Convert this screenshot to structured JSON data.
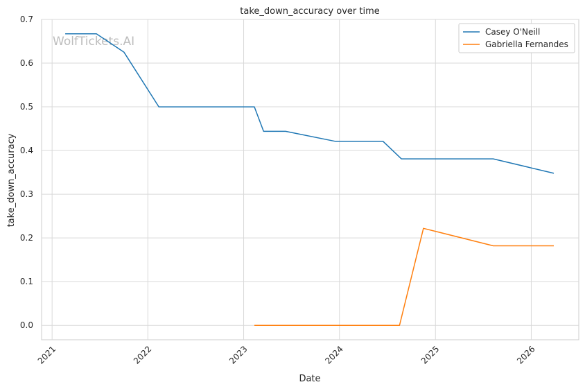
{
  "chart_data": {
    "type": "line",
    "title": "take_down_accuracy over time",
    "xlabel": "Date",
    "ylabel": "take_down_accuracy",
    "watermark": "WolfTickets.AI",
    "x_ticks": [
      "2021",
      "2022",
      "2023",
      "2024",
      "2025",
      "2026"
    ],
    "y_ticks": [
      "0.0",
      "0.1",
      "0.2",
      "0.3",
      "0.4",
      "0.5",
      "0.6",
      "0.7"
    ],
    "ylim": [
      -0.033,
      0.7
    ],
    "xlim": [
      "2020-11-22",
      "2026-07-01"
    ],
    "grid": true,
    "legend_position": "top-right",
    "colors": {
      "Casey O'Neill": "#1f77b4",
      "Gabriella Fernandes": "#ff7f0e"
    },
    "series": [
      {
        "name": "Casey O'Neill",
        "x": [
          "2021-02-20",
          "2021-06-19",
          "2021-10-02",
          "2022-02-12",
          "2023-02-11",
          "2023-03-18",
          "2023-06-10",
          "2023-12-16",
          "2024-06-15",
          "2024-08-24",
          "2025-08-09",
          "2026-03-28"
        ],
        "y": [
          0.667,
          0.667,
          0.625,
          0.5,
          0.5,
          0.444,
          0.444,
          0.421,
          0.421,
          0.381,
          0.381,
          0.348
        ]
      },
      {
        "name": "Gabriella Fernandes",
        "x": [
          "2023-02-11",
          "2024-08-17",
          "2024-11-16",
          "2025-08-09",
          "2026-03-28"
        ],
        "y": [
          0.0,
          0.0,
          0.222,
          0.182,
          0.182
        ]
      }
    ]
  }
}
